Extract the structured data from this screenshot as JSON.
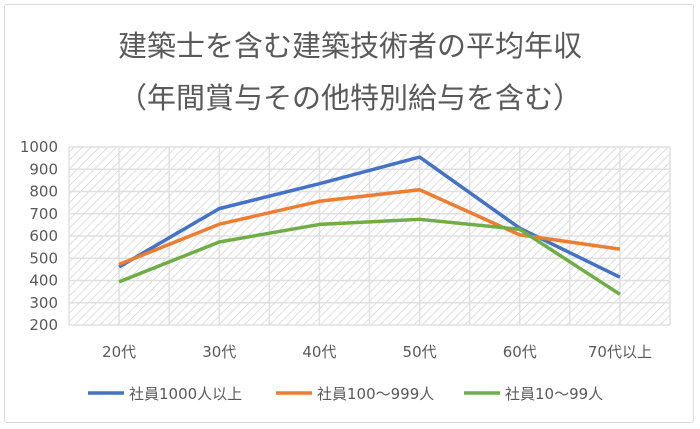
{
  "chart_data": {
    "type": "line",
    "title": "建築士を含む建築技術者の平均年収",
    "subtitle": "（年間賞与その他特別給与を含む）",
    "xlabel": "",
    "ylabel": "",
    "categories": [
      "20代",
      "30代",
      "40代",
      "50代",
      "60代",
      "70代以上"
    ],
    "ylim": [
      200,
      1000
    ],
    "yticks": [
      "1000",
      "900",
      "800",
      "700",
      "600",
      "500",
      "400",
      "300",
      "200"
    ],
    "grid": true,
    "plot_background": "diagonal hatch",
    "legend_position": "bottom",
    "series": [
      {
        "name": "社員1000人以上",
        "color": "#4472c4",
        "values": [
          461,
          723,
          835,
          955,
          635,
          415
        ]
      },
      {
        "name": "社員100〜999人",
        "color": "#ed7d31",
        "values": [
          472,
          653,
          756,
          808,
          605,
          541
        ]
      },
      {
        "name": "社員10〜99人",
        "color": "#70ad47",
        "values": [
          394,
          573,
          652,
          675,
          630,
          338
        ]
      }
    ]
  }
}
